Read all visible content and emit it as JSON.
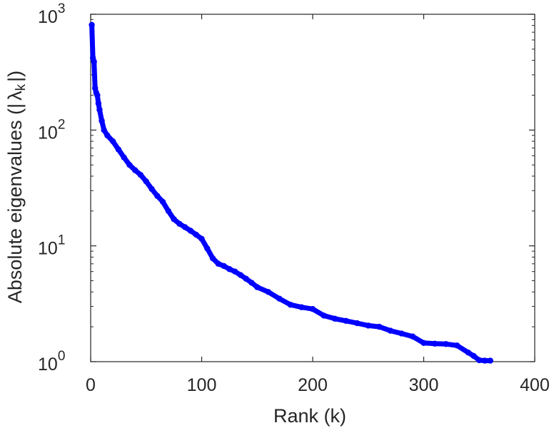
{
  "chart_data": {
    "type": "line",
    "xlabel": "Rank (k)",
    "ylabel": "Absolute eigenvalues (|λk|)",
    "ylabel_parts": {
      "prefix": "Absolute eigenvalues (|",
      "symbol": "λ",
      "subscript": "k",
      "suffix": "|)"
    },
    "xlim": [
      0,
      400
    ],
    "ylim": [
      1,
      1000
    ],
    "yscale": "log",
    "xticks": [
      0,
      100,
      200,
      300,
      400
    ],
    "xtick_labels": [
      "0",
      "100",
      "200",
      "300",
      "400"
    ],
    "yticks": [
      1,
      10,
      100,
      1000
    ],
    "ytick_labels": [
      {
        "base": "10",
        "exp": "0"
      },
      {
        "base": "10",
        "exp": "1"
      },
      {
        "base": "10",
        "exp": "2"
      },
      {
        "base": "10",
        "exp": "3"
      }
    ],
    "grid": false,
    "series_color": "#0000ff",
    "marker": "circle",
    "series": [
      {
        "points": [
          [
            1,
            810
          ],
          [
            2,
            420
          ],
          [
            3,
            390
          ],
          [
            4,
            230
          ],
          [
            5,
            210
          ],
          [
            6,
            200
          ],
          [
            7,
            170
          ],
          [
            8,
            150
          ],
          [
            10,
            120
          ],
          [
            12,
            100
          ],
          [
            15,
            90
          ],
          [
            20,
            80
          ],
          [
            25,
            68
          ],
          [
            30,
            58
          ],
          [
            35,
            50
          ],
          [
            40,
            45
          ],
          [
            45,
            41
          ],
          [
            50,
            36
          ],
          [
            55,
            31
          ],
          [
            60,
            27
          ],
          [
            65,
            24
          ],
          [
            70,
            20
          ],
          [
            75,
            17
          ],
          [
            80,
            15.5
          ],
          [
            85,
            14.5
          ],
          [
            90,
            13.5
          ],
          [
            95,
            12.5
          ],
          [
            100,
            11.5
          ],
          [
            105,
            9.5
          ],
          [
            110,
            7.8
          ],
          [
            115,
            7
          ],
          [
            120,
            6.7
          ],
          [
            125,
            6.3
          ],
          [
            130,
            6
          ],
          [
            135,
            5.6
          ],
          [
            140,
            5.2
          ],
          [
            145,
            4.8
          ],
          [
            150,
            4.4
          ],
          [
            160,
            4
          ],
          [
            170,
            3.5
          ],
          [
            180,
            3.1
          ],
          [
            190,
            2.95
          ],
          [
            200,
            2.85
          ],
          [
            210,
            2.5
          ],
          [
            220,
            2.35
          ],
          [
            230,
            2.25
          ],
          [
            240,
            2.15
          ],
          [
            250,
            2.05
          ],
          [
            260,
            2
          ],
          [
            270,
            1.85
          ],
          [
            280,
            1.75
          ],
          [
            290,
            1.65
          ],
          [
            300,
            1.45
          ],
          [
            310,
            1.43
          ],
          [
            320,
            1.42
          ],
          [
            330,
            1.38
          ],
          [
            340,
            1.2
          ],
          [
            345,
            1.12
          ],
          [
            350,
            1.03
          ],
          [
            355,
            1.02
          ],
          [
            360,
            1.02
          ]
        ]
      }
    ]
  }
}
